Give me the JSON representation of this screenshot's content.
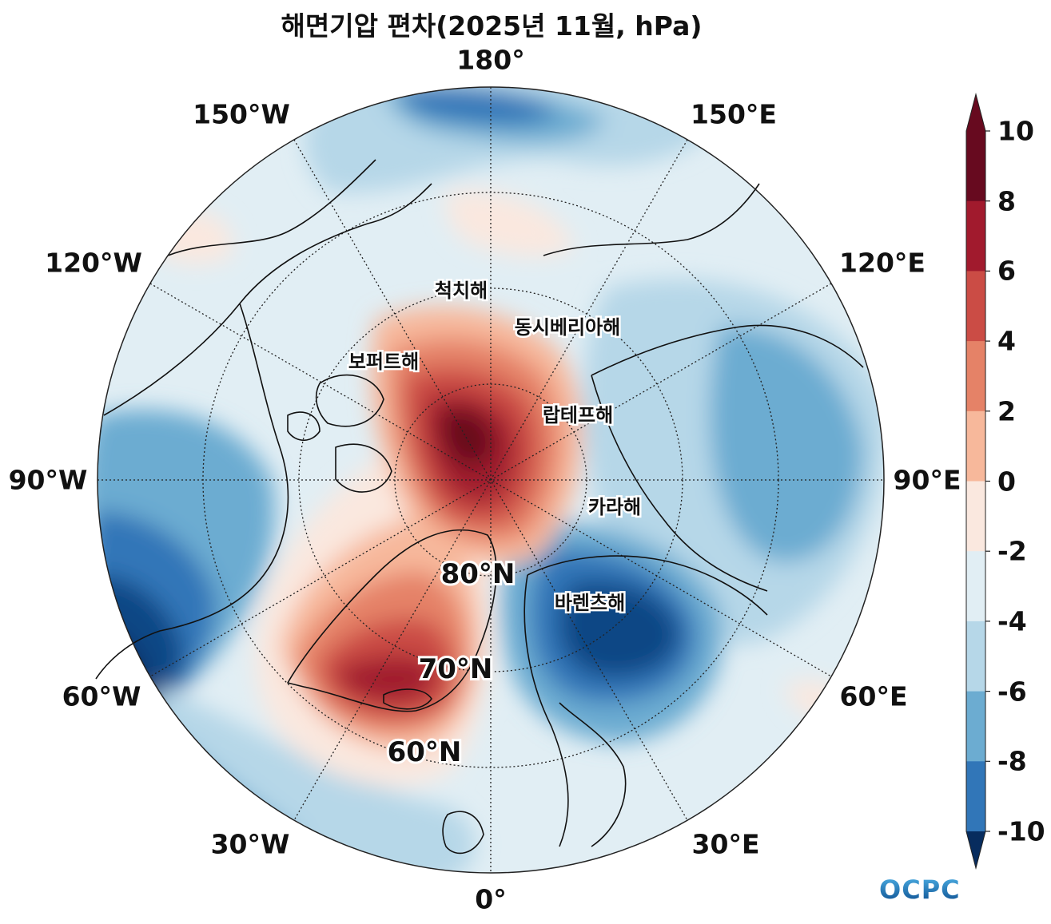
{
  "title": "해면기압 편차(2025년 11월, hPa)",
  "longitude_labels": {
    "lon_180": "180°",
    "lon_150w": "150°W",
    "lon_150e": "150°E",
    "lon_120w": "120°W",
    "lon_120e": "120°E",
    "lon_90w": "90°W",
    "lon_90e": "90°E",
    "lon_60w": "60°W",
    "lon_60e": "60°E",
    "lon_30w": "30°W",
    "lon_30e": "30°E",
    "lon_0": "0°"
  },
  "latitude_labels": {
    "lat_80": "80°N",
    "lat_70": "70°N",
    "lat_60": "60°N"
  },
  "seas": {
    "chukchi": "척치해",
    "east_siberian": "동시베리아해",
    "beaufort": "보퍼트해",
    "laptev": "랍테프해",
    "kara": "카라해",
    "barents": "바렌츠해"
  },
  "colorbar": {
    "ticks": [
      "10",
      "8",
      "6",
      "4",
      "2",
      "0",
      "-2",
      "-4",
      "-6",
      "-8",
      "-10"
    ],
    "colors": [
      "#670a1f",
      "#a11a2d",
      "#cb4c45",
      "#e58267",
      "#f7b89b",
      "#fae8df",
      "#e1eef4",
      "#b6d7e8",
      "#6cacd1",
      "#3176b8",
      "#104785",
      "#072c5e"
    ]
  },
  "logo": "OCPC"
}
